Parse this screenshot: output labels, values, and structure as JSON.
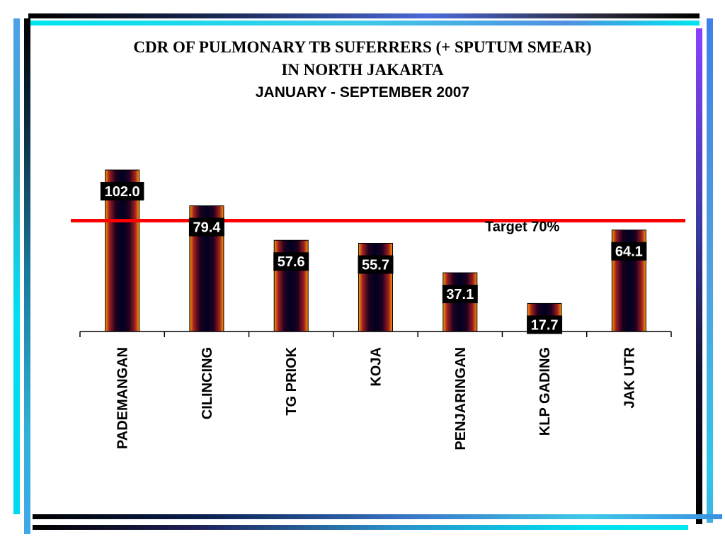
{
  "title": {
    "line1": "CDR OF PULMONARY TB SUFERRERS (+ SPUTUM SMEAR)",
    "line2": "IN NORTH JAKARTA",
    "subtitle": "JANUARY -  SEPTEMBER 2007"
  },
  "colors": {
    "bar_fill": "#0a0030",
    "bar_edge": "#ff9900",
    "target_line": "#ff0000",
    "label_box": "#000000"
  },
  "chart_data": {
    "type": "bar",
    "title": "CDR OF PULMONARY TB SUFERRERS (+ SPUTUM SMEAR) IN NORTH JAKARTA JANUARY -  SEPTEMBER 2007",
    "categories": [
      "PADEMANGAN",
      "CILINCING",
      "TG PRIOK",
      "KOJA",
      "PENJARINGAN",
      "KLP GADING",
      "JAK UTR"
    ],
    "values": [
      102.0,
      79.4,
      57.6,
      55.7,
      37.1,
      17.7,
      64.1
    ],
    "value_labels": [
      "102.0",
      "79.4",
      "57.6",
      "55.7",
      "37.1",
      "17.7",
      "64.1"
    ],
    "target": {
      "value": 70,
      "label": "Target 70%"
    },
    "ylim": [
      0,
      102
    ],
    "grid": false,
    "legend": "none"
  }
}
